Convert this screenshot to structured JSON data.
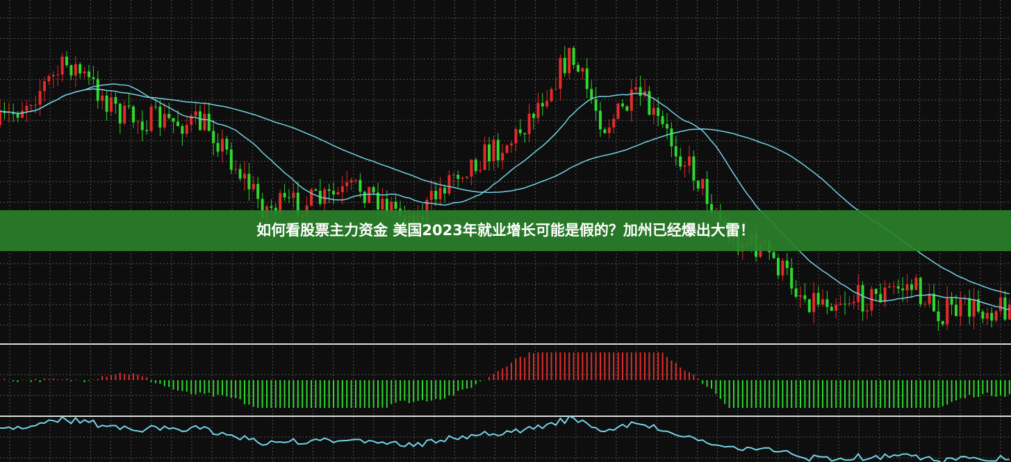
{
  "banner": {
    "title": "如何看股票主力资金 美国2023年就业增长可能是假的？加州已经爆出大雷！"
  }
}
